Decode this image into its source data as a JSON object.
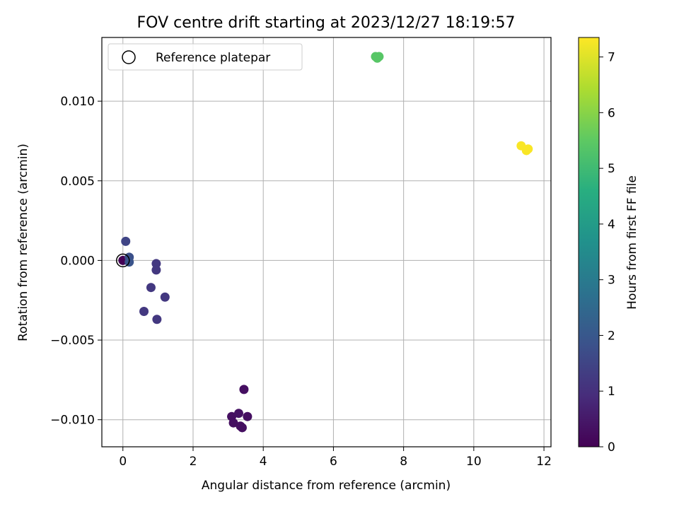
{
  "chart_data": {
    "type": "scatter",
    "title": "FOV centre drift starting at 2023/12/27 18:19:57",
    "xlabel": "Angular distance from reference (arcmin)",
    "ylabel": "Rotation from reference (arcmin)",
    "xlim": [
      -0.6,
      12.2
    ],
    "ylim": [
      -0.0117,
      0.014
    ],
    "xticks": [
      0,
      2,
      4,
      6,
      8,
      10,
      12
    ],
    "xtick_labels": [
      "0",
      "2",
      "4",
      "6",
      "8",
      "10",
      "12"
    ],
    "yticks": [
      -0.01,
      -0.005,
      0.0,
      0.005,
      0.01
    ],
    "ytick_labels": [
      "−0.010",
      "−0.005",
      "0.000",
      "0.005",
      "0.010"
    ],
    "grid": true,
    "legend": {
      "placement": "top-left",
      "entries": [
        "Reference platepar"
      ]
    },
    "colorbar": {
      "label": "Hours from first FF file",
      "range": [
        0,
        7.35
      ],
      "ticks": [
        0,
        1,
        2,
        3,
        4,
        5,
        6,
        7
      ],
      "tick_labels": [
        "0",
        "1",
        "2",
        "3",
        "4",
        "5",
        "6",
        "7"
      ],
      "colormap": "viridis"
    },
    "reference": {
      "name": "Reference platepar",
      "x": 0.0,
      "y": 0.0
    },
    "points": [
      {
        "x": 0.0,
        "y": 0.0,
        "hours": 0.0
      },
      {
        "x": 3.45,
        "y": -0.0081,
        "hours": 0.3
      },
      {
        "x": 3.1,
        "y": -0.0098,
        "hours": 0.3
      },
      {
        "x": 3.3,
        "y": -0.0096,
        "hours": 0.35
      },
      {
        "x": 3.55,
        "y": -0.0098,
        "hours": 0.3
      },
      {
        "x": 3.15,
        "y": -0.0102,
        "hours": 0.3
      },
      {
        "x": 3.35,
        "y": -0.0104,
        "hours": 0.3
      },
      {
        "x": 3.4,
        "y": -0.0105,
        "hours": 0.3
      },
      {
        "x": 0.95,
        "y": -0.0002,
        "hours": 1.2
      },
      {
        "x": 0.95,
        "y": -0.0006,
        "hours": 1.2
      },
      {
        "x": 0.8,
        "y": -0.0017,
        "hours": 1.2
      },
      {
        "x": 1.2,
        "y": -0.0023,
        "hours": 1.2
      },
      {
        "x": 0.6,
        "y": -0.0032,
        "hours": 1.2
      },
      {
        "x": 0.97,
        "y": -0.0037,
        "hours": 1.2
      },
      {
        "x": 0.08,
        "y": 0.0012,
        "hours": 1.5
      },
      {
        "x": 0.18,
        "y": 0.0002,
        "hours": 1.8
      },
      {
        "x": 0.18,
        "y": -0.0001,
        "hours": 1.9
      },
      {
        "x": 7.2,
        "y": 0.0128,
        "hours": 5.4
      },
      {
        "x": 7.3,
        "y": 0.0128,
        "hours": 5.4
      },
      {
        "x": 7.25,
        "y": 0.0127,
        "hours": 5.4
      },
      {
        "x": 11.35,
        "y": 0.0072,
        "hours": 7.3
      },
      {
        "x": 11.5,
        "y": 0.0069,
        "hours": 7.3
      },
      {
        "x": 11.55,
        "y": 0.007,
        "hours": 7.3
      }
    ]
  }
}
